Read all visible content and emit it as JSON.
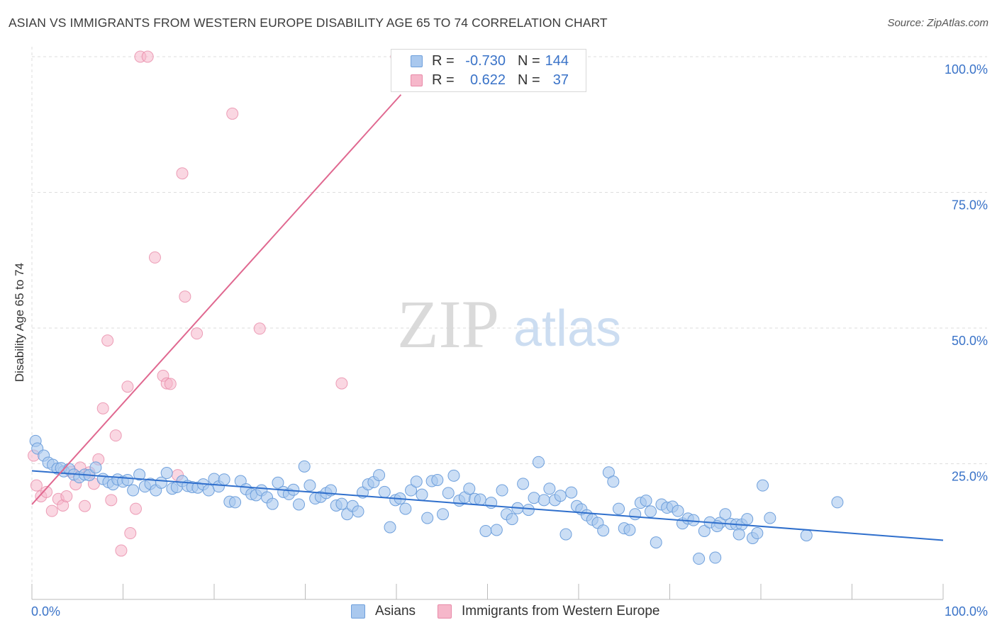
{
  "title": "ASIAN VS IMMIGRANTS FROM WESTERN EUROPE DISABILITY AGE 65 TO 74 CORRELATION CHART",
  "source": "Source: ZipAtlas.com",
  "watermark": {
    "zip": "ZIP",
    "atlas": "atlas"
  },
  "legend_top": {
    "rows": [
      {
        "r_label": "R =",
        "r_value": "-0.730",
        "n_label": "N =",
        "n_value": "144"
      },
      {
        "r_label": "R =",
        "r_value": "0.622",
        "n_label": "N =",
        "n_value": "37"
      }
    ]
  },
  "legend_bottom": {
    "items": [
      "Asians",
      "Immigrants from Western Europe"
    ]
  },
  "colors": {
    "blue_fill": "#a9c8ee",
    "blue_stroke": "#6fa0dc",
    "blue_line": "#2f6fcc",
    "pink_fill": "#f6b7ca",
    "pink_stroke": "#e88aa8",
    "pink_line": "#e06890",
    "tick_label": "#3a73c8",
    "grid": "#dddddd"
  },
  "chart_data": {
    "type": "scatter",
    "title": "ASIAN VS IMMIGRANTS FROM WESTERN EUROPE DISABILITY AGE 65 TO 74 CORRELATION CHART",
    "xlabel": "",
    "ylabel": "Disability Age 65 to 74",
    "xlim": [
      0,
      100
    ],
    "ylim": [
      0,
      100
    ],
    "x_tick_labels": [
      "0.0%",
      "100.0%"
    ],
    "y_ticks": [
      25,
      50,
      75,
      100
    ],
    "y_tick_labels": [
      "25.0%",
      "50.0%",
      "75.0%",
      "100.0%"
    ],
    "grid": true,
    "legend_position": "top-center",
    "series": [
      {
        "name": "Asians",
        "r": -0.73,
        "n": 144,
        "trend": {
          "x": [
            0,
            100
          ],
          "y": [
            23.7,
            10.9
          ]
        },
        "points": [
          [
            0.4,
            29.2
          ],
          [
            0.6,
            27.8
          ],
          [
            1.3,
            26.5
          ],
          [
            1.8,
            25.2
          ],
          [
            2.3,
            24.8
          ],
          [
            2.8,
            24.1
          ],
          [
            3.5,
            23.6
          ],
          [
            3.2,
            24.2
          ],
          [
            4.1,
            24.0
          ],
          [
            4.6,
            23.0
          ],
          [
            5.2,
            22.5
          ],
          [
            5.8,
            23.0
          ],
          [
            6.3,
            22.9
          ],
          [
            7.0,
            24.3
          ],
          [
            7.8,
            22.2
          ],
          [
            8.4,
            21.6
          ],
          [
            8.9,
            21.2
          ],
          [
            9.4,
            22.1
          ],
          [
            10.0,
            21.7
          ],
          [
            10.5,
            22.0
          ],
          [
            11.1,
            20.1
          ],
          [
            11.8,
            23.0
          ],
          [
            12.4,
            20.8
          ],
          [
            13.0,
            21.3
          ],
          [
            13.6,
            20.1
          ],
          [
            14.2,
            21.5
          ],
          [
            14.8,
            23.3
          ],
          [
            15.4,
            20.4
          ],
          [
            15.9,
            20.7
          ],
          [
            16.5,
            21.8
          ],
          [
            17.1,
            20.9
          ],
          [
            17.6,
            20.7
          ],
          [
            18.2,
            20.6
          ],
          [
            18.8,
            21.2
          ],
          [
            19.4,
            20.1
          ],
          [
            20.0,
            22.2
          ],
          [
            20.5,
            20.8
          ],
          [
            21.1,
            22.1
          ],
          [
            21.7,
            18.0
          ],
          [
            22.3,
            17.9
          ],
          [
            22.9,
            21.8
          ],
          [
            23.5,
            20.3
          ],
          [
            24.1,
            19.4
          ],
          [
            24.6,
            19.2
          ],
          [
            25.2,
            20.1
          ],
          [
            25.8,
            18.8
          ],
          [
            26.4,
            17.6
          ],
          [
            27.0,
            21.5
          ],
          [
            27.6,
            19.8
          ],
          [
            28.2,
            19.4
          ],
          [
            28.7,
            20.2
          ],
          [
            29.3,
            17.5
          ],
          [
            29.9,
            24.5
          ],
          [
            30.5,
            21.0
          ],
          [
            31.1,
            18.6
          ],
          [
            31.7,
            18.9
          ],
          [
            32.3,
            19.6
          ],
          [
            32.8,
            20.1
          ],
          [
            33.4,
            17.3
          ],
          [
            34.0,
            17.6
          ],
          [
            34.6,
            15.7
          ],
          [
            35.2,
            17.2
          ],
          [
            35.8,
            16.2
          ],
          [
            36.3,
            19.7
          ],
          [
            36.9,
            21.2
          ],
          [
            37.5,
            21.6
          ],
          [
            38.1,
            22.9
          ],
          [
            38.7,
            19.8
          ],
          [
            39.3,
            13.3
          ],
          [
            39.9,
            18.3
          ],
          [
            40.4,
            18.6
          ],
          [
            41.0,
            16.7
          ],
          [
            41.6,
            20.1
          ],
          [
            42.2,
            21.7
          ],
          [
            42.8,
            19.3
          ],
          [
            43.4,
            15.0
          ],
          [
            43.9,
            21.8
          ],
          [
            44.5,
            22.0
          ],
          [
            45.1,
            15.7
          ],
          [
            45.7,
            19.6
          ],
          [
            46.3,
            22.8
          ],
          [
            46.9,
            18.2
          ],
          [
            47.5,
            18.8
          ],
          [
            48.0,
            20.4
          ],
          [
            48.6,
            18.5
          ],
          [
            49.2,
            18.4
          ],
          [
            49.8,
            12.6
          ],
          [
            50.4,
            17.8
          ],
          [
            51.0,
            12.8
          ],
          [
            51.6,
            20.1
          ],
          [
            52.1,
            15.7
          ],
          [
            52.7,
            14.8
          ],
          [
            53.3,
            16.8
          ],
          [
            53.9,
            21.3
          ],
          [
            54.5,
            16.5
          ],
          [
            55.1,
            18.7
          ],
          [
            55.6,
            25.3
          ],
          [
            56.2,
            18.3
          ],
          [
            56.8,
            20.4
          ],
          [
            57.4,
            18.3
          ],
          [
            58.0,
            19.1
          ],
          [
            58.6,
            12.0
          ],
          [
            59.2,
            19.7
          ],
          [
            59.8,
            17.2
          ],
          [
            60.3,
            16.6
          ],
          [
            60.9,
            15.5
          ],
          [
            61.5,
            14.7
          ],
          [
            62.1,
            14.1
          ],
          [
            62.7,
            12.7
          ],
          [
            63.3,
            23.4
          ],
          [
            63.8,
            21.7
          ],
          [
            64.4,
            16.7
          ],
          [
            65.0,
            13.1
          ],
          [
            65.6,
            12.8
          ],
          [
            66.2,
            15.7
          ],
          [
            66.8,
            17.8
          ],
          [
            67.4,
            18.2
          ],
          [
            67.9,
            16.2
          ],
          [
            68.5,
            10.5
          ],
          [
            69.1,
            17.5
          ],
          [
            69.7,
            16.9
          ],
          [
            70.3,
            17.1
          ],
          [
            70.9,
            16.3
          ],
          [
            71.4,
            14.0
          ],
          [
            72.0,
            14.9
          ],
          [
            72.6,
            14.6
          ],
          [
            73.2,
            7.5
          ],
          [
            73.8,
            12.6
          ],
          [
            74.4,
            14.2
          ],
          [
            75.0,
            7.7
          ],
          [
            75.5,
            14.1
          ],
          [
            76.1,
            15.7
          ],
          [
            76.7,
            13.9
          ],
          [
            77.3,
            13.8
          ],
          [
            77.9,
            13.8
          ],
          [
            78.5,
            14.8
          ],
          [
            79.1,
            11.3
          ],
          [
            79.6,
            12.2
          ],
          [
            80.2,
            21.0
          ],
          [
            81.0,
            15.0
          ],
          [
            85.0,
            11.8
          ],
          [
            88.4,
            17.9
          ],
          [
            77.6,
            12.0
          ],
          [
            75.2,
            13.5
          ]
        ]
      },
      {
        "name": "Immigrants from Western Europe",
        "r": 0.622,
        "n": 37,
        "trend": {
          "x": [
            0,
            40.5
          ],
          "y": [
            17.5,
            93.0
          ]
        },
        "points": [
          [
            0.2,
            26.5
          ],
          [
            0.5,
            21.0
          ],
          [
            1.0,
            19.0
          ],
          [
            1.6,
            19.8
          ],
          [
            2.2,
            16.3
          ],
          [
            2.9,
            18.5
          ],
          [
            3.4,
            17.3
          ],
          [
            3.8,
            19.0
          ],
          [
            4.3,
            23.5
          ],
          [
            4.8,
            21.2
          ],
          [
            5.3,
            24.3
          ],
          [
            5.8,
            17.2
          ],
          [
            6.3,
            23.4
          ],
          [
            6.8,
            21.3
          ],
          [
            7.3,
            25.8
          ],
          [
            7.8,
            35.2
          ],
          [
            8.3,
            47.7
          ],
          [
            8.7,
            18.3
          ],
          [
            9.2,
            30.2
          ],
          [
            9.8,
            9.0
          ],
          [
            10.5,
            39.2
          ],
          [
            10.8,
            12.2
          ],
          [
            11.4,
            16.7
          ],
          [
            11.9,
            100.0
          ],
          [
            12.7,
            100.0
          ],
          [
            13.5,
            63.0
          ],
          [
            14.4,
            41.2
          ],
          [
            14.8,
            39.8
          ],
          [
            15.2,
            39.7
          ],
          [
            16.0,
            22.9
          ],
          [
            16.5,
            78.5
          ],
          [
            16.8,
            55.8
          ],
          [
            18.1,
            49.0
          ],
          [
            22.0,
            89.5
          ],
          [
            25.0,
            49.9
          ],
          [
            34.0,
            39.8
          ],
          [
            40.0,
            100.0
          ]
        ]
      }
    ]
  }
}
